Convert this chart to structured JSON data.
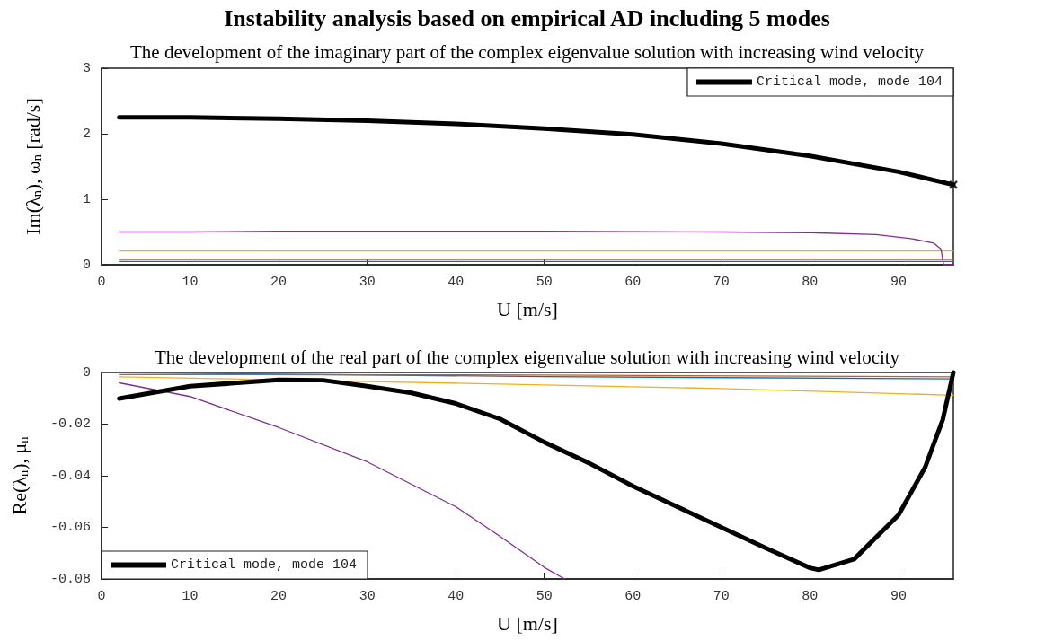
{
  "chart_data": [
    {
      "type": "line",
      "title": "Instability analysis based on empirical AD including 5 modes",
      "subtitle": "The development of the imaginary part of the complex eigenvalue solution with increasing wind velocity",
      "xlabel": "U [m/s]",
      "ylabel": "Im(λ$_{n}$), ω$_{n}$ [rad/s]",
      "xlim": [
        0,
        96.2
      ],
      "xticks": [
        0,
        10,
        20,
        30,
        40,
        50,
        60,
        70,
        80,
        90
      ],
      "ylim": [
        0,
        3
      ],
      "yticks": [
        0,
        1,
        2,
        3
      ],
      "grid": false,
      "legend": "top right",
      "marker": "none",
      "line_style": "solid",
      "series": [
        {
          "color": "#0072bd",
          "x": [
            2,
            50,
            96.2
          ],
          "values": [
            0.05,
            0.05,
            0.05
          ]
        },
        {
          "color": "#d95319",
          "x": [
            2,
            50,
            96.2
          ],
          "values": [
            0.08,
            0.08,
            0.08
          ]
        },
        {
          "color": "#edb120",
          "x": [
            2,
            50,
            96.2
          ],
          "values": [
            0.21,
            0.21,
            0.21
          ]
        },
        {
          "color": "#7e2f8e",
          "x": [
            2,
            10,
            20,
            50,
            70,
            80,
            87.5,
            91.4,
            94,
            94.8,
            95.1,
            96.2
          ],
          "values": [
            0.5,
            0.5,
            0.51,
            0.51,
            0.5,
            0.49,
            0.46,
            0.4,
            0.33,
            0.24,
            0,
            0
          ]
        },
        {
          "name": "Critical mode, mode 104",
          "color": "#000000",
          "x": [
            2,
            10,
            20,
            30,
            40,
            50,
            60,
            70,
            80,
            90,
            96.2
          ],
          "values": [
            2.25,
            2.25,
            2.23,
            2.2,
            2.15,
            2.08,
            1.99,
            1.85,
            1.66,
            1.42,
            1.22
          ]
        },
        {
          "type": "scatter",
          "marker": "cross",
          "color": "#000000",
          "x": [
            96.2
          ],
          "values": [
            1.22
          ]
        }
      ]
    },
    {
      "type": "line",
      "title": "The development of the real part of the complex eigenvalue solution with increasing wind velocity",
      "xlabel": "U [m/s]",
      "ylabel": "Re(λ$_{n}$), μ$_{n}$",
      "xlim": [
        0,
        96.2
      ],
      "xticks": [
        0,
        10,
        20,
        30,
        40,
        50,
        60,
        70,
        80,
        90
      ],
      "ylim": [
        -0.08,
        0
      ],
      "yticks": [
        0,
        -0.02,
        -0.04,
        -0.06,
        -0.08
      ],
      "grid": false,
      "legend": "bottom left",
      "marker": "none",
      "line_style": "solid",
      "series": [
        {
          "color": "#0072bd",
          "x": [
            2,
            50,
            96.2
          ],
          "values": [
            -0.0001,
            -0.0016,
            -0.0025
          ]
        },
        {
          "color": "#d95319",
          "x": [
            2,
            50,
            96.2
          ],
          "values": [
            -0.0008,
            -0.001,
            -0.0017
          ]
        },
        {
          "color": "#edb120",
          "x": [
            2,
            30,
            50,
            70,
            96.2
          ],
          "values": [
            -0.0017,
            -0.0035,
            -0.0048,
            -0.0062,
            -0.0088
          ]
        },
        {
          "color": "#7e2f8e",
          "x": [
            2,
            10,
            20,
            30,
            40,
            45,
            50,
            52.3
          ],
          "values": [
            -0.004,
            -0.0093,
            -0.0213,
            -0.0346,
            -0.052,
            -0.0635,
            -0.0755,
            -0.08
          ]
        },
        {
          "name": "Critical mode, mode 104",
          "color": "#000000",
          "x": [
            2,
            10,
            20,
            25,
            30,
            35,
            40,
            45,
            50,
            55,
            60,
            65,
            70,
            75,
            80,
            81,
            85,
            90,
            93,
            95,
            96.2
          ],
          "values": [
            -0.0101,
            -0.0053,
            -0.0029,
            -0.003,
            -0.0053,
            -0.0079,
            -0.012,
            -0.018,
            -0.027,
            -0.035,
            -0.044,
            -0.052,
            -0.06,
            -0.068,
            -0.0757,
            -0.0765,
            -0.0723,
            -0.0552,
            -0.0368,
            -0.0183,
            0
          ]
        }
      ]
    }
  ]
}
